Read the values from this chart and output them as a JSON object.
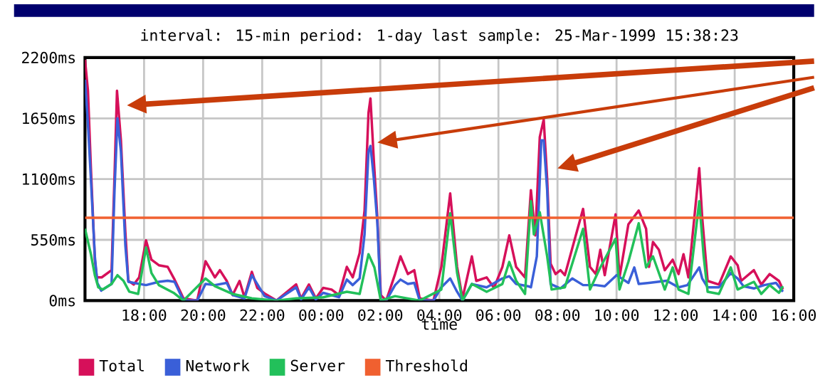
{
  "chart_data": {
    "type": "line",
    "title": "interval: 15-min  period: 1-day  last sample: 25-Mar-1999 15:38:23",
    "xlabel": "time",
    "xlim": [
      "1999-03-24T16:00",
      "1999-03-25T16:00"
    ],
    "ylim": [
      0,
      2200
    ],
    "xticks": [
      {
        "value": "1999-03-24T18:00",
        "label": "18:00"
      },
      {
        "value": "1999-03-24T20:00",
        "label": "20:00"
      },
      {
        "value": "1999-03-24T22:00",
        "label": "22:00"
      },
      {
        "value": "1999-03-25T00:00",
        "label": "00:00"
      },
      {
        "value": "1999-03-25T02:00",
        "label": "02:00"
      },
      {
        "value": "1999-03-25T04:00",
        "label": "04:00"
      },
      {
        "value": "1999-03-25T06:00",
        "label": "06:00"
      },
      {
        "value": "1999-03-25T08:00",
        "label": "08:00"
      },
      {
        "value": "1999-03-25T10:00",
        "label": "10:00"
      },
      {
        "value": "1999-03-25T12:00",
        "label": "12:00"
      },
      {
        "value": "1999-03-25T14:00",
        "label": "14:00"
      },
      {
        "value": "1999-03-25T16:00",
        "label": "16:00"
      }
    ],
    "yticks": [
      {
        "value": 0,
        "label": "0ms"
      },
      {
        "value": 550,
        "label": "550ms"
      },
      {
        "value": 1100,
        "label": "1100ms"
      },
      {
        "value": 1650,
        "label": "1650ms"
      },
      {
        "value": 2200,
        "label": "2200ms"
      }
    ],
    "grid": true,
    "legend": "bottom",
    "marker": "none",
    "line_style": "solid",
    "series": [
      {
        "name": "Total",
        "color": "#d6105a",
        "x": [
          "1999-03-24T16:00",
          "1999-03-24T16:06",
          "1999-03-24T16:12",
          "1999-03-24T16:20",
          "1999-03-24T16:24",
          "1999-03-24T16:34",
          "1999-03-24T16:54",
          "1999-03-24T17:00",
          "1999-03-24T17:05",
          "1999-03-24T17:13",
          "1999-03-24T17:22",
          "1999-03-24T17:28",
          "1999-03-24T17:39",
          "1999-03-24T17:50",
          "1999-03-24T18:04",
          "1999-03-24T18:15",
          "1999-03-24T18:30",
          "1999-03-24T18:48",
          "1999-03-24T19:02",
          "1999-03-24T19:20",
          "1999-03-24T19:48",
          "1999-03-24T20:05",
          "1999-03-24T20:24",
          "1999-03-24T20:34",
          "1999-03-24T20:48",
          "1999-03-24T21:00",
          "1999-03-24T21:14",
          "1999-03-24T21:24",
          "1999-03-24T21:39",
          "1999-03-24T21:50",
          "1999-03-24T22:05",
          "1999-03-24T22:29",
          "1999-03-24T23:09",
          "1999-03-24T23:19",
          "1999-03-24T23:35",
          "1999-03-24T23:49",
          "1999-03-25T00:04",
          "1999-03-25T00:21",
          "1999-03-25T00:36",
          "1999-03-25T00:52",
          "1999-03-25T01:04",
          "1999-03-25T01:18",
          "1999-03-25T01:28",
          "1999-03-25T01:36",
          "1999-03-25T01:40",
          "1999-03-25T01:47",
          "1999-03-25T01:54",
          "1999-03-25T02:01",
          "1999-03-25T02:12",
          "1999-03-25T02:30",
          "1999-03-25T02:41",
          "1999-03-25T02:56",
          "1999-03-25T03:09",
          "1999-03-25T03:20",
          "1999-03-25T03:48",
          "1999-03-25T04:04",
          "1999-03-25T04:22",
          "1999-03-25T04:36",
          "1999-03-25T04:47",
          "1999-03-25T05:06",
          "1999-03-25T05:15",
          "1999-03-25T05:36",
          "1999-03-25T05:51",
          "1999-03-25T06:08",
          "1999-03-25T06:22",
          "1999-03-25T06:36",
          "1999-03-25T06:54",
          "1999-03-25T07:06",
          "1999-03-25T07:15",
          "1999-03-25T07:24",
          "1999-03-25T07:32",
          "1999-03-25T07:39",
          "1999-03-25T07:46",
          "1999-03-25T07:56",
          "1999-03-25T08:06",
          "1999-03-25T08:15",
          "1999-03-25T08:52",
          "1999-03-25T09:06",
          "1999-03-25T09:18",
          "1999-03-25T09:27",
          "1999-03-25T09:36",
          "1999-03-25T09:58",
          "1999-03-25T10:06",
          "1999-03-25T10:24",
          "1999-03-25T10:45",
          "1999-03-25T11:00",
          "1999-03-25T11:06",
          "1999-03-25T11:14",
          "1999-03-25T11:26",
          "1999-03-25T11:38",
          "1999-03-25T11:54",
          "1999-03-25T12:06",
          "1999-03-25T12:16",
          "1999-03-25T12:26",
          "1999-03-25T12:48",
          "1999-03-25T12:54",
          "1999-03-25T13:05",
          "1999-03-25T13:28",
          "1999-03-25T13:52",
          "1999-03-25T14:06",
          "1999-03-25T14:13",
          "1999-03-25T14:39",
          "1999-03-25T14:54",
          "1999-03-25T15:11",
          "1999-03-25T15:30",
          "1999-03-25T15:38"
        ],
        "values": [
          2180,
          1900,
          1200,
          370,
          210,
          210,
          275,
          1130,
          1900,
          1450,
          620,
          180,
          145,
          210,
          545,
          370,
          320,
          305,
          190,
          20,
          0,
          356,
          210,
          275,
          178,
          50,
          178,
          30,
          260,
          115,
          64,
          0,
          146,
          20,
          146,
          20,
          115,
          100,
          50,
          305,
          210,
          430,
          815,
          1700,
          1830,
          1260,
          750,
          50,
          0,
          240,
          400,
          240,
          275,
          20,
          0,
          305,
          970,
          305,
          20,
          400,
          178,
          210,
          115,
          305,
          590,
          305,
          210,
          1000,
          590,
          1480,
          1640,
          1100,
          335,
          240,
          275,
          230,
          830,
          305,
          240,
          460,
          230,
          780,
          210,
          690,
          815,
          650,
          305,
          530,
          460,
          275,
          370,
          240,
          420,
          210,
          1200,
          750,
          178,
          145,
          400,
          320,
          178,
          275,
          145,
          240,
          178,
          100
        ]
      },
      {
        "name": "Network",
        "color": "#3a5fd8",
        "x": [
          "1999-03-24T16:00",
          "1999-03-24T16:06",
          "1999-03-24T16:12",
          "1999-03-24T16:20",
          "1999-03-24T16:25",
          "1999-03-24T16:33",
          "1999-03-24T16:54",
          "1999-03-24T17:00",
          "1999-03-24T17:06",
          "1999-03-24T17:13",
          "1999-03-24T17:22",
          "1999-03-24T17:28",
          "1999-03-24T17:39",
          "1999-03-24T18:04",
          "1999-03-24T18:30",
          "1999-03-24T18:48",
          "1999-03-24T19:02",
          "1999-03-24T19:20",
          "1999-03-24T19:48",
          "1999-03-24T20:05",
          "1999-03-24T20:24",
          "1999-03-24T20:48",
          "1999-03-24T21:00",
          "1999-03-24T21:24",
          "1999-03-24T21:39",
          "1999-03-24T22:05",
          "1999-03-24T22:29",
          "1999-03-24T23:09",
          "1999-03-24T23:19",
          "1999-03-24T23:35",
          "1999-03-24T23:49",
          "1999-03-25T00:04",
          "1999-03-25T00:36",
          "1999-03-25T00:52",
          "1999-03-25T01:04",
          "1999-03-25T01:18",
          "1999-03-25T01:28",
          "1999-03-25T01:36",
          "1999-03-25T01:40",
          "1999-03-25T01:47",
          "1999-03-25T01:54",
          "1999-03-25T02:01",
          "1999-03-25T02:12",
          "1999-03-25T02:30",
          "1999-03-25T02:41",
          "1999-03-25T02:56",
          "1999-03-25T03:09",
          "1999-03-25T03:20",
          "1999-03-25T03:48",
          "1999-03-25T04:04",
          "1999-03-25T04:22",
          "1999-03-25T04:36",
          "1999-03-25T04:47",
          "1999-03-25T05:06",
          "1999-03-25T05:36",
          "1999-03-25T06:08",
          "1999-03-25T06:22",
          "1999-03-25T06:36",
          "1999-03-25T07:00",
          "1999-03-25T07:06",
          "1999-03-25T07:18",
          "1999-03-25T07:27",
          "1999-03-25T07:32",
          "1999-03-25T07:39",
          "1999-03-25T07:46",
          "1999-03-25T08:06",
          "1999-03-25T08:30",
          "1999-03-25T08:52",
          "1999-03-25T09:18",
          "1999-03-25T09:36",
          "1999-03-25T10:00",
          "1999-03-25T10:24",
          "1999-03-25T10:36",
          "1999-03-25T10:45",
          "1999-03-25T11:06",
          "1999-03-25T11:24",
          "1999-03-25T11:42",
          "1999-03-25T12:06",
          "1999-03-25T12:24",
          "1999-03-25T12:48",
          "1999-03-25T12:54",
          "1999-03-25T13:05",
          "1999-03-25T13:28",
          "1999-03-25T13:52",
          "1999-03-25T14:06",
          "1999-03-25T14:18",
          "1999-03-25T14:39",
          "1999-03-25T15:00",
          "1999-03-25T15:24",
          "1999-03-25T15:38"
        ],
        "values": [
          2000,
          1600,
          1100,
          400,
          160,
          90,
          150,
          1000,
          1650,
          1350,
          500,
          170,
          160,
          140,
          170,
          180,
          170,
          0,
          0,
          150,
          140,
          160,
          50,
          20,
          230,
          40,
          0,
          120,
          10,
          120,
          10,
          70,
          30,
          190,
          140,
          200,
          600,
          1350,
          1400,
          1100,
          700,
          0,
          0,
          140,
          190,
          150,
          160,
          0,
          0,
          120,
          200,
          80,
          0,
          150,
          120,
          200,
          220,
          150,
          130,
          120,
          400,
          1450,
          1450,
          1000,
          150,
          110,
          200,
          140,
          140,
          130,
          230,
          160,
          300,
          150,
          160,
          170,
          180,
          120,
          140,
          300,
          200,
          120,
          120,
          250,
          200,
          130,
          110,
          140,
          160,
          80
        ]
      },
      {
        "name": "Server",
        "color": "#22c05a",
        "x": [
          "1999-03-24T16:00",
          "1999-03-24T16:12",
          "1999-03-24T16:20",
          "1999-03-24T16:27",
          "1999-03-24T16:36",
          "1999-03-24T16:54",
          "1999-03-24T17:06",
          "1999-03-24T17:18",
          "1999-03-24T17:30",
          "1999-03-24T17:48",
          "1999-03-24T18:04",
          "1999-03-24T18:15",
          "1999-03-24T18:30",
          "1999-03-24T19:00",
          "1999-03-24T19:20",
          "1999-03-24T20:05",
          "1999-03-24T20:24",
          "1999-03-24T21:00",
          "1999-03-24T21:39",
          "1999-03-24T22:29",
          "1999-03-24T23:09",
          "1999-03-25T00:04",
          "1999-03-25T00:52",
          "1999-03-25T01:18",
          "1999-03-25T01:36",
          "1999-03-25T01:48",
          "1999-03-25T02:01",
          "1999-03-25T02:30",
          "1999-03-25T03:20",
          "1999-03-25T04:04",
          "1999-03-25T04:22",
          "1999-03-25T04:36",
          "1999-03-25T04:47",
          "1999-03-25T05:06",
          "1999-03-25T05:36",
          "1999-03-25T06:08",
          "1999-03-25T06:22",
          "1999-03-25T06:36",
          "1999-03-25T06:54",
          "1999-03-25T07:06",
          "1999-03-25T07:12",
          "1999-03-25T07:24",
          "1999-03-25T07:39",
          "1999-03-25T07:48",
          "1999-03-25T08:15",
          "1999-03-25T08:52",
          "1999-03-25T09:06",
          "1999-03-25T09:27",
          "1999-03-25T09:58",
          "1999-03-25T10:06",
          "1999-03-25T10:24",
          "1999-03-25T10:45",
          "1999-03-25T11:00",
          "1999-03-25T11:14",
          "1999-03-25T11:38",
          "1999-03-25T11:54",
          "1999-03-25T12:06",
          "1999-03-25T12:26",
          "1999-03-25T12:48",
          "1999-03-25T12:57",
          "1999-03-25T13:05",
          "1999-03-25T13:28",
          "1999-03-25T13:52",
          "1999-03-25T14:06",
          "1999-03-25T14:39",
          "1999-03-25T14:54",
          "1999-03-25T15:11",
          "1999-03-25T15:30",
          "1999-03-25T15:38"
        ],
        "values": [
          650,
          420,
          230,
          120,
          100,
          150,
          230,
          180,
          80,
          60,
          480,
          250,
          140,
          70,
          0,
          200,
          130,
          60,
          20,
          0,
          20,
          30,
          80,
          60,
          420,
          300,
          0,
          40,
          0,
          100,
          790,
          250,
          0,
          150,
          80,
          150,
          350,
          180,
          60,
          900,
          600,
          800,
          400,
          100,
          120,
          650,
          100,
          300,
          560,
          100,
          350,
          700,
          300,
          400,
          100,
          300,
          100,
          60,
          900,
          400,
          80,
          60,
          300,
          100,
          170,
          60,
          140,
          70,
          130
        ]
      }
    ],
    "ref_lines": [
      {
        "axis": "y",
        "value": 750,
        "label": "Threshold",
        "color": "#f06030"
      }
    ]
  }
}
